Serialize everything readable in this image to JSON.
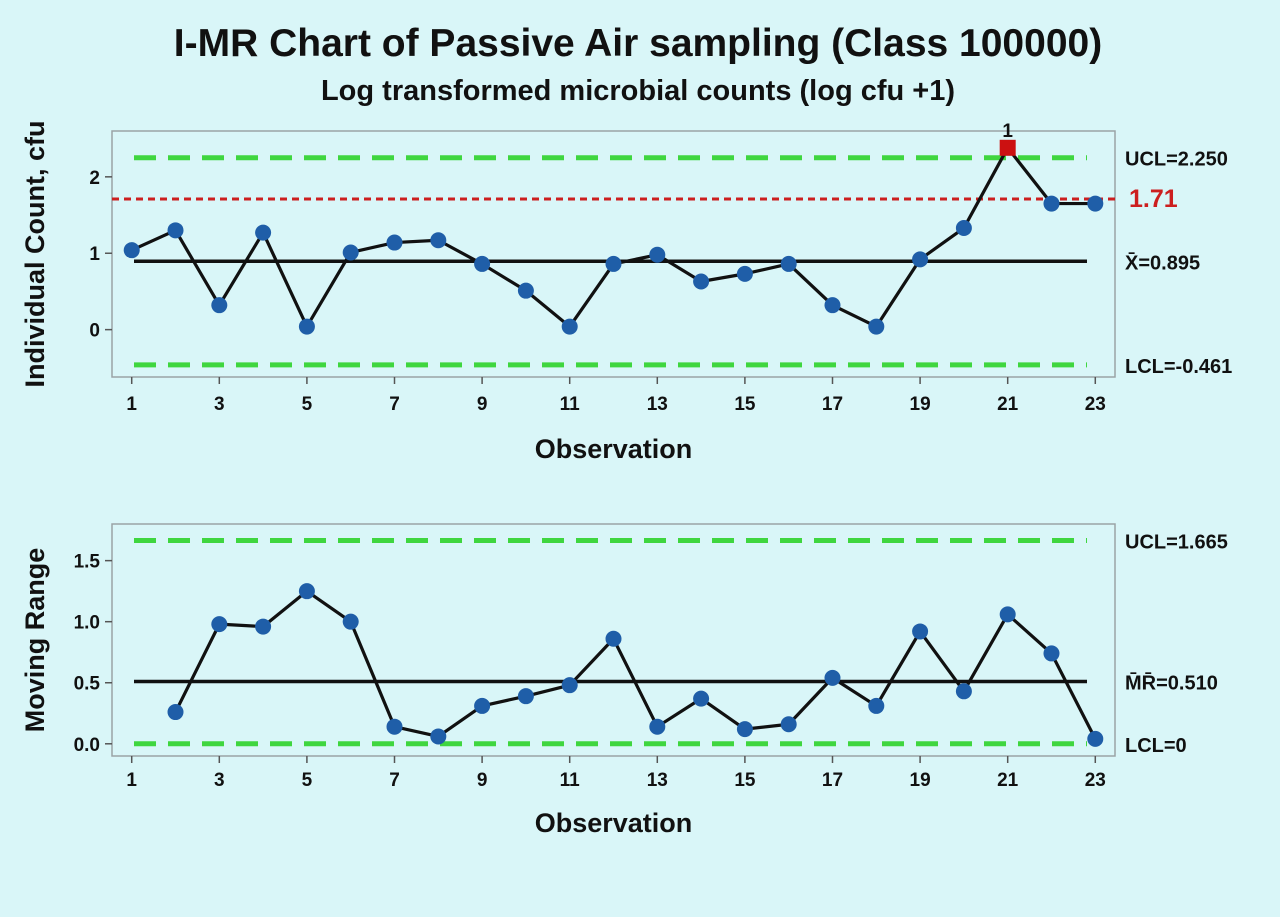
{
  "page": {
    "title": "I-MR Chart of Passive Air sampling (Class 100000)",
    "subtitle": "Log transformed microbial counts (log cfu +1)"
  },
  "colors": {
    "background": "#d9f6f8",
    "plot_bg": "#d9f6f8",
    "point": "#1f5ea8",
    "line": "#111111",
    "limit": "#3fd63f",
    "reference": "#cc1f1f",
    "out_of_control": "#cc1111"
  },
  "chart_data": [
    {
      "type": "line",
      "chart": "individuals",
      "xlabel": "Observation",
      "ylabel": "Individual Count, cfu",
      "x": [
        1,
        2,
        3,
        4,
        5,
        6,
        7,
        8,
        9,
        10,
        11,
        12,
        13,
        14,
        15,
        16,
        17,
        18,
        19,
        20,
        21,
        22,
        23
      ],
      "values": [
        1.04,
        1.3,
        0.32,
        1.27,
        0.04,
        1.01,
        1.14,
        1.17,
        0.86,
        0.51,
        0.04,
        0.86,
        0.98,
        0.63,
        0.73,
        0.86,
        0.32,
        0.04,
        0.92,
        1.33,
        2.38,
        1.65,
        1.65
      ],
      "xticks": [
        1,
        3,
        5,
        7,
        9,
        11,
        13,
        15,
        17,
        19,
        21,
        23
      ],
      "yticks": [
        0,
        1,
        2
      ],
      "xlim": [
        0.55,
        23.45
      ],
      "ylim": [
        -0.62,
        2.6
      ],
      "grid": false,
      "center": {
        "value": 0.895,
        "label": "X̄=0.895"
      },
      "ucl": {
        "value": 2.25,
        "label": "UCL=2.250"
      },
      "lcl": {
        "value": -0.461,
        "label": "LCL=-0.461"
      },
      "reference": {
        "value": 1.71,
        "label": "1.71"
      },
      "flags": [
        {
          "x": 21,
          "label": "1"
        }
      ]
    },
    {
      "type": "line",
      "chart": "moving-range",
      "xlabel": "Observation",
      "ylabel": "Moving Range",
      "x": [
        2,
        3,
        4,
        5,
        6,
        7,
        8,
        9,
        10,
        11,
        12,
        13,
        14,
        15,
        16,
        17,
        18,
        19,
        20,
        21,
        22,
        23
      ],
      "values": [
        0.26,
        0.98,
        0.96,
        1.25,
        1.0,
        0.14,
        0.06,
        0.31,
        0.39,
        0.48,
        0.86,
        0.14,
        0.37,
        0.12,
        0.16,
        0.54,
        0.31,
        0.92,
        0.43,
        1.06,
        0.74,
        0.04
      ],
      "xticks": [
        1,
        3,
        5,
        7,
        9,
        11,
        13,
        15,
        17,
        19,
        21,
        23
      ],
      "yticks": [
        0.0,
        0.5,
        1.0,
        1.5
      ],
      "ytick_labels": [
        "0.0",
        "0.5",
        "1.0",
        "1.5"
      ],
      "xlim": [
        0.55,
        23.45
      ],
      "ylim": [
        -0.1,
        1.8
      ],
      "grid": false,
      "center": {
        "value": 0.51,
        "label": "M̄R̄=0.510"
      },
      "ucl": {
        "value": 1.665,
        "label": "UCL=1.665"
      },
      "lcl": {
        "value": 0,
        "label": "LCL=0"
      },
      "flags": []
    }
  ]
}
